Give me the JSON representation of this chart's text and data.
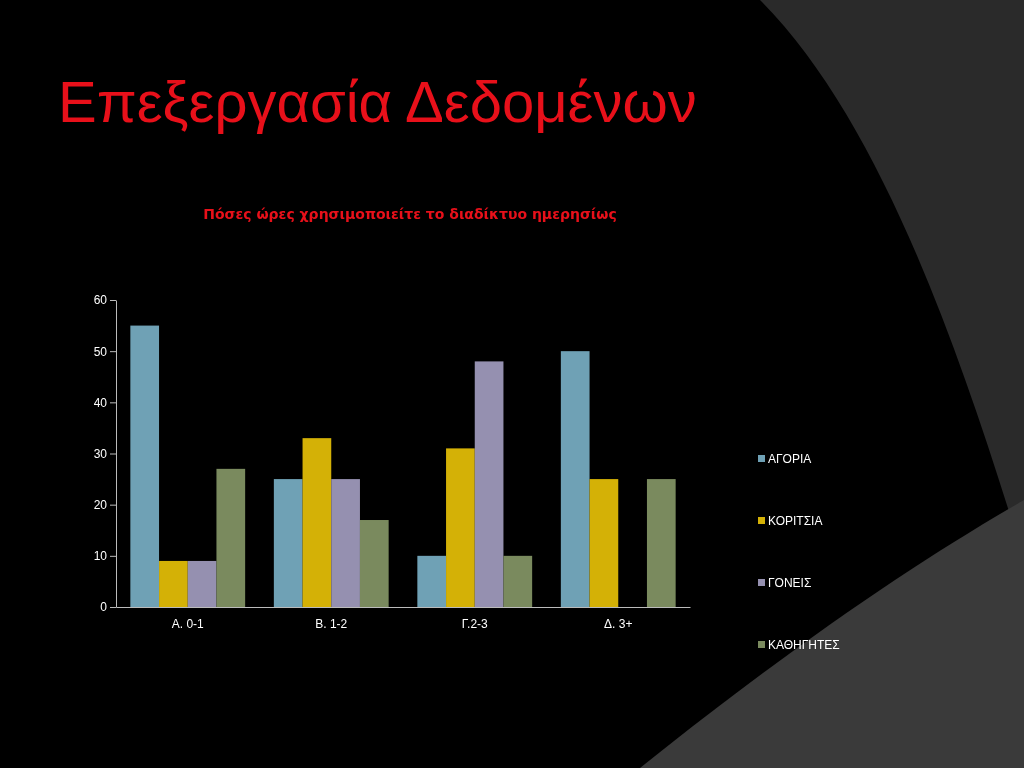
{
  "chart_data": {
    "type": "bar",
    "title": "Επεξεργασία Δεδομένων",
    "subtitle": "Πόσες ώρες χρησιμοποιείτε το διαδίκτυο ημερησίως",
    "categories": [
      "Α. 0-1",
      "Β. 1-2",
      "Γ.2-3",
      "Δ. 3+"
    ],
    "series": [
      {
        "name": "ΑΓΟΡΙΑ",
        "color": "#6fa1b5",
        "values": [
          55,
          25,
          10,
          50
        ]
      },
      {
        "name": "ΚΟΡΙΤΣΙΑ",
        "color": "#d4b106",
        "values": [
          9,
          33,
          31,
          25
        ]
      },
      {
        "name": "ΓΟΝΕΙΣ",
        "color": "#9590b0",
        "values": [
          9,
          25,
          48,
          0
        ]
      },
      {
        "name": "ΚΑΘΗΓΗΤΕΣ",
        "color": "#7a8a5e",
        "values": [
          27,
          17,
          10,
          25
        ]
      }
    ],
    "ylim": [
      0,
      60
    ],
    "yticks": [
      0,
      10,
      20,
      30,
      40,
      50,
      60
    ],
    "legend": "right",
    "grid": false
  }
}
